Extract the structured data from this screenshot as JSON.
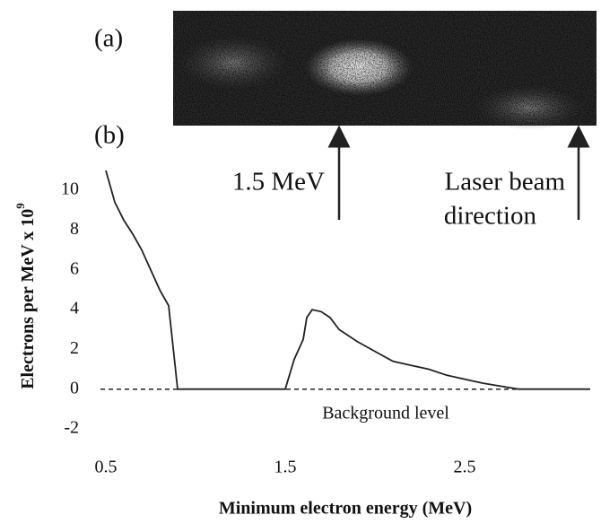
{
  "chart_data": {
    "type": "line",
    "panel_labels": [
      "(a)",
      "(b)"
    ],
    "xlabel": "Minimum electron energy (MeV)",
    "ylabel": {
      "text": "Electrons per MeV x 10",
      "superscript": "9"
    },
    "annotations": [
      "1.5 MeV",
      "Laser beam",
      "direction"
    ],
    "background_label": "Background level",
    "background_level": 0,
    "x": [
      0.5,
      0.55,
      0.6,
      0.65,
      0.7,
      0.75,
      0.8,
      0.85,
      0.9,
      1.5,
      1.55,
      1.6,
      1.62,
      1.65,
      1.7,
      1.75,
      1.8,
      1.9,
      2.0,
      2.1,
      2.2,
      2.3,
      2.4,
      2.5,
      2.6,
      2.7,
      2.8,
      3.2
    ],
    "values": [
      11,
      9.4,
      8.5,
      7.8,
      7,
      6,
      5,
      4.2,
      0,
      0,
      1.5,
      2.5,
      3.6,
      4,
      3.9,
      3.6,
      3,
      2.4,
      1.9,
      1.4,
      1.2,
      1.0,
      0.7,
      0.5,
      0.3,
      0.15,
      0,
      0
    ],
    "color": "#222222",
    "xlim": [
      0.5,
      3.2
    ],
    "ylim": [
      -2,
      11
    ],
    "xticks": [
      0.5,
      1.5,
      2.5
    ],
    "yticks": [
      -2,
      0,
      2,
      4,
      6,
      8,
      10
    ]
  }
}
